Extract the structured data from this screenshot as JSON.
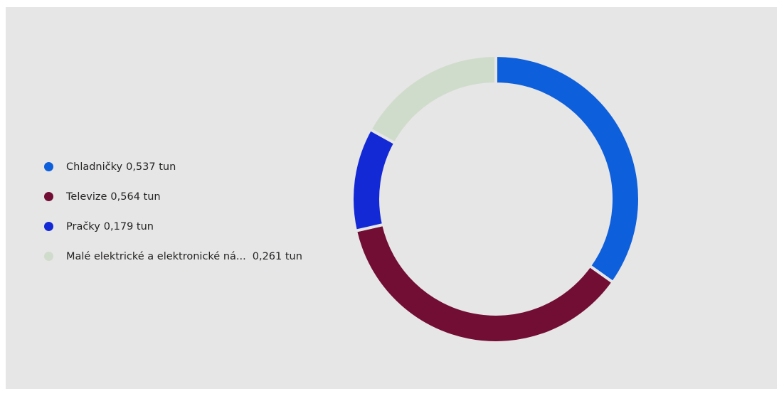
{
  "chart_data": {
    "type": "pie",
    "variant": "donut",
    "unit": "tun",
    "legend_position": "left",
    "slices": [
      {
        "name": "Chladničky",
        "value": 0.537,
        "label_value": "0,537 tun",
        "color": "#0e5fdb"
      },
      {
        "name": "Televize",
        "value": 0.564,
        "label_value": "0,564 tun",
        "color": "#720d33"
      },
      {
        "name": "Pračky",
        "value": 0.179,
        "label_value": "0,179 tun",
        "color": "#1429d6"
      },
      {
        "name": "Malé elektrické a elektronické ná...",
        "value": 0.261,
        "label_value": "0,261 tun",
        "color": "#d0dccb"
      }
    ]
  },
  "background_color": "#e6e6e6"
}
